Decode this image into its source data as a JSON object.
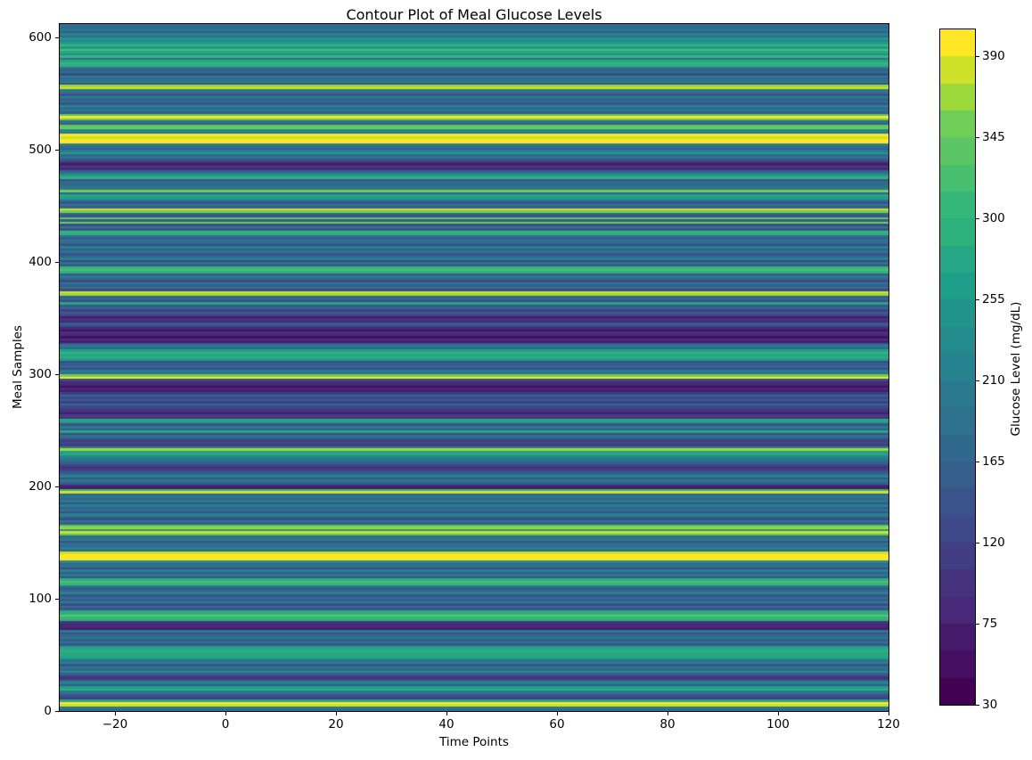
{
  "chart_data": {
    "type": "heatmap",
    "title": "Contour Plot of Meal Glucose Levels",
    "xlabel": "Time Points",
    "ylabel": "Meal Samples",
    "colorbar_label": "Glucose Level (mg/dL)",
    "colormap": "viridis",
    "grid": false,
    "legend_position": "colorbar-right",
    "x_range": [
      -30,
      120
    ],
    "y_range": [
      0,
      612
    ],
    "value_range": [
      30,
      405
    ],
    "contour_level_step": 15,
    "x_ticks": [
      -20,
      0,
      20,
      40,
      60,
      80,
      100,
      120
    ],
    "x_tick_labels": [
      "−20",
      "0",
      "20",
      "40",
      "60",
      "80",
      "100",
      "120"
    ],
    "y_ticks": [
      0,
      100,
      200,
      300,
      400,
      500,
      600
    ],
    "y_tick_labels": [
      "0",
      "100",
      "200",
      "300",
      "400",
      "500",
      "600"
    ],
    "colorbar_ticks": [
      30,
      75,
      120,
      165,
      210,
      255,
      300,
      345,
      390
    ],
    "colorbar_tick_labels": [
      "30",
      "75",
      "120",
      "165",
      "210",
      "255",
      "300",
      "345",
      "390"
    ],
    "band_colors": [
      "#440154",
      "#450E60",
      "#471B6C",
      "#482878",
      "#45337E",
      "#413E83",
      "#3E4989",
      "#3A538B",
      "#355E8C",
      "#31688E",
      "#2D718E",
      "#2A798E",
      "#26828E",
      "#248B8C",
      "#21958B",
      "#1F9E89",
      "#26A684",
      "#2EAF7E",
      "#35B779",
      "#48BF6E",
      "#5BC663",
      "#6ECE58",
      "#9DD93A",
      "#CDE129",
      "#FDE725"
    ],
    "n_samples": 612,
    "samples_per_row": 2,
    "row_glucose_values_bottom_to_top": [
      190,
      205,
      385,
      400,
      270,
      115,
      130,
      175,
      200,
      290,
      265,
      160,
      215,
      175,
      95,
      110,
      150,
      230,
      165,
      195,
      140,
      220,
      180,
      255,
      280,
      270,
      295,
      275,
      260,
      135,
      185,
      155,
      200,
      170,
      145,
      195,
      65,
      85,
      75,
      90,
      285,
      310,
      340,
      295,
      270,
      145,
      190,
      125,
      210,
      160,
      185,
      135,
      220,
      175,
      150,
      205,
      300,
      320,
      290,
      140,
      195,
      160,
      215,
      130,
      185,
      170,
      225,
      390,
      405,
      395,
      380,
      150,
      210,
      165,
      190,
      135,
      205,
      175,
      330,
      385,
      250,
      370,
      340,
      155,
      200,
      130,
      180,
      215,
      145,
      190,
      160,
      220,
      140,
      205,
      170,
      195,
      150,
      385,
      300,
      70,
      85,
      150,
      195,
      135,
      215,
      170,
      145,
      115,
      100,
      130,
      160,
      185,
      205,
      230,
      280,
      260,
      370,
      200,
      110,
      125,
      105,
      150,
      185,
      130,
      280,
      160,
      200,
      145,
      255,
      270,
      90,
      105,
      60,
      95,
      110,
      120,
      165,
      105,
      150,
      130,
      175,
      115,
      60,
      80,
      55,
      85,
      80,
      120,
      395,
      345,
      180,
      195,
      120,
      170,
      155,
      130,
      265,
      290,
      275,
      300,
      260,
      170,
      200,
      150,
      60,
      90,
      45,
      75,
      100,
      55,
      85,
      130,
      155,
      75,
      95,
      65,
      120,
      160,
      105,
      175,
      140,
      270,
      125,
      165,
      150,
      360,
      375,
      130,
      180,
      150,
      205,
      125,
      170,
      195,
      140,
      290,
      325,
      300,
      145,
      190,
      120,
      210,
      165,
      135,
      185,
      155,
      215,
      130,
      175,
      200,
      150,
      190,
      285,
      305,
      140,
      195,
      125,
      345,
      160,
      330,
      135,
      175,
      355,
      375,
      150,
      200,
      135,
      185,
      260,
      275,
      155,
      350,
      195,
      190,
      165,
      170,
      145,
      285,
      260,
      195,
      150,
      85,
      110,
      70,
      100,
      140,
      195,
      165,
      265,
      205,
      150,
      185,
      220,
      395,
      405,
      385,
      400,
      195,
      220,
      355,
      340,
      160,
      190,
      345,
      395,
      330,
      150,
      205,
      170,
      225,
      140,
      190,
      160,
      215,
      135,
      180,
      200,
      385,
      370,
      145,
      195,
      165,
      210,
      130,
      185,
      155,
      200,
      285,
      305,
      270,
      165,
      310,
      230,
      280,
      320,
      240,
      300,
      260,
      215,
      250,
      175,
      220,
      155,
      205,
      170,
      190
    ]
  }
}
